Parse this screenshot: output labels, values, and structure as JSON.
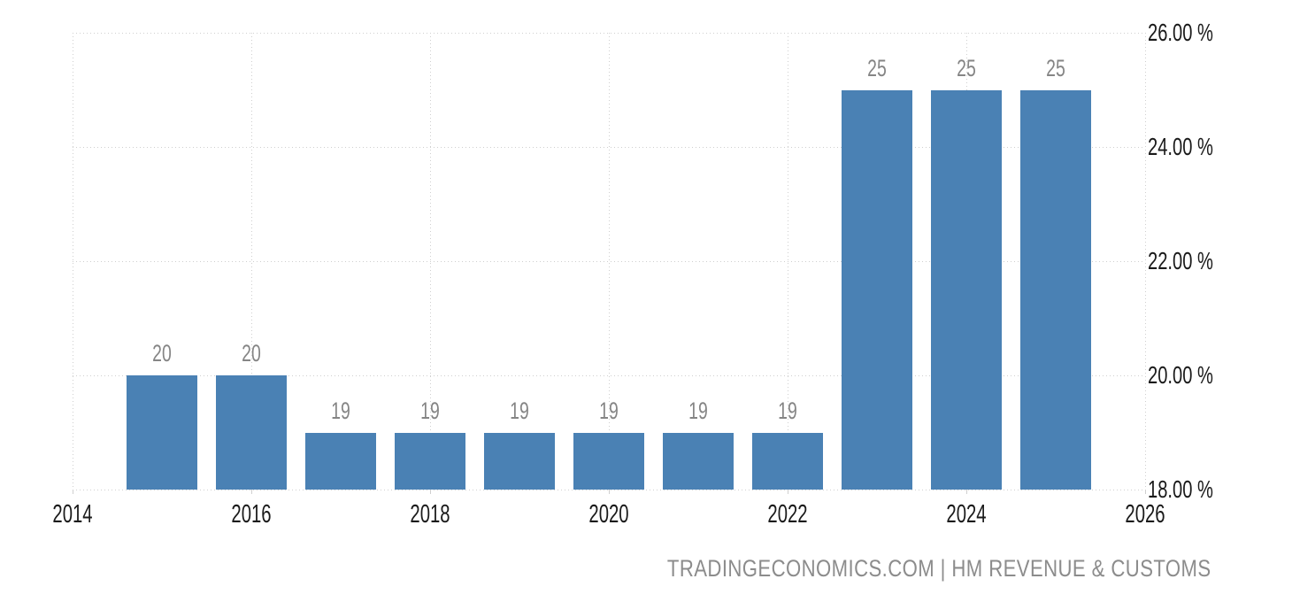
{
  "chart_data": {
    "type": "bar",
    "source": "TRADINGECONOMICS.COM | HM REVENUE & CUSTOMS",
    "categories": [
      2015,
      2016,
      2017,
      2018,
      2019,
      2020,
      2021,
      2022,
      2023,
      2024,
      2025
    ],
    "values": [
      20,
      20,
      19,
      19,
      19,
      19,
      19,
      19,
      25,
      25,
      25
    ],
    "bar_labels": [
      "20",
      "20",
      "19",
      "19",
      "19",
      "19",
      "19",
      "19",
      "25",
      "25",
      "25"
    ],
    "xlim": [
      2014,
      2026
    ],
    "ylim": [
      18,
      26
    ],
    "x_ticks": [
      {
        "v": 2014,
        "label": "2014"
      },
      {
        "v": 2016,
        "label": "2016"
      },
      {
        "v": 2018,
        "label": "2018"
      },
      {
        "v": 2020,
        "label": "2020"
      },
      {
        "v": 2022,
        "label": "2022"
      },
      {
        "v": 2024,
        "label": "2024"
      },
      {
        "v": 2026,
        "label": "2026"
      }
    ],
    "y_ticks": [
      {
        "v": 18,
        "label": "18.00 %"
      },
      {
        "v": 20,
        "label": "20.00 %"
      },
      {
        "v": 22,
        "label": "22.00 %"
      },
      {
        "v": 24,
        "label": "24.00 %"
      },
      {
        "v": 26,
        "label": "26.00 %"
      }
    ],
    "grid": "dotted",
    "legend": "none",
    "colors": {
      "bar": "#4a81b4",
      "bar_label": "#858585",
      "tick_label": "#1a1a1a",
      "grid": "#cfcfcf",
      "source": "#8c8c8c",
      "background": "#ffffff"
    }
  }
}
